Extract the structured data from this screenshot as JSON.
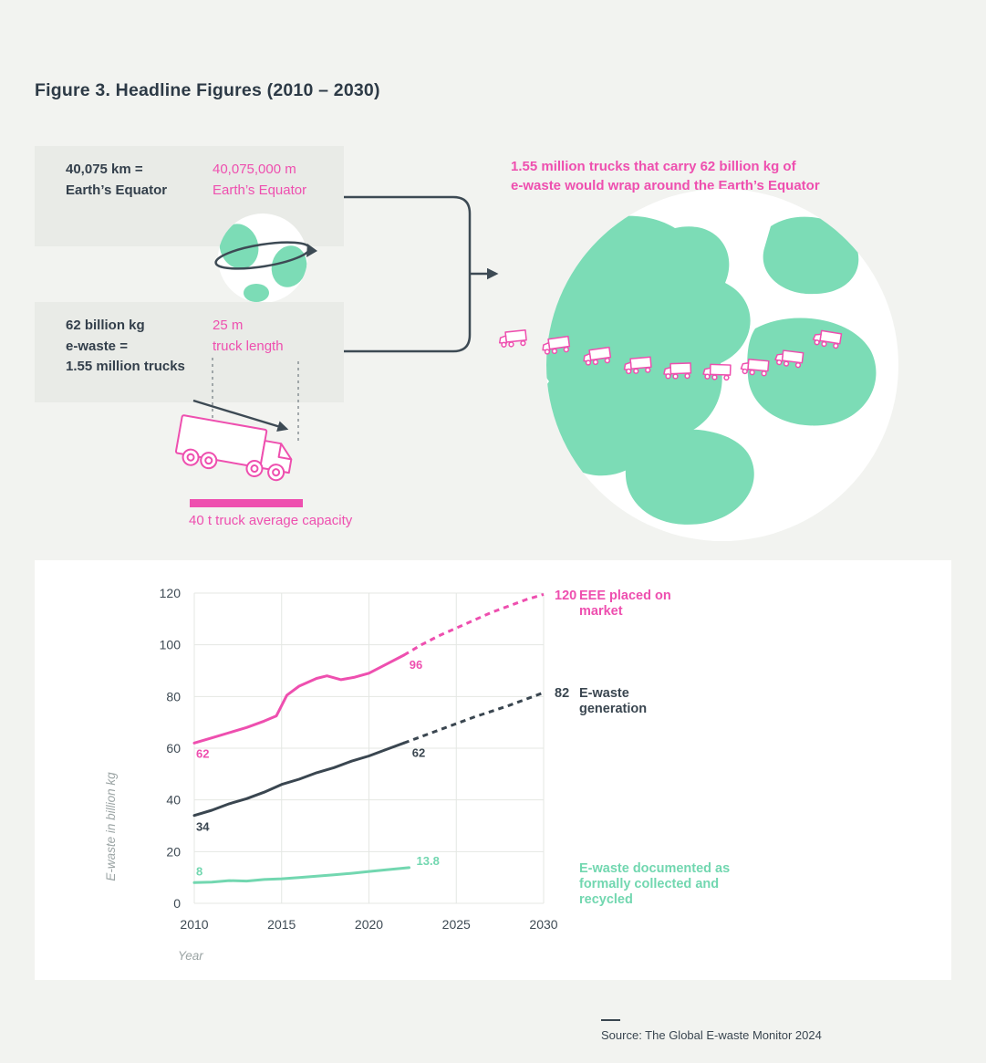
{
  "figure": {
    "title": "Figure 3. Headline Figures (2010 – 2030)",
    "source": "Source: The Global E-waste Monitor 2024"
  },
  "cards": {
    "equator": {
      "fact": [
        "40,075 km =",
        "Earth’s Equator"
      ],
      "conversion": [
        "40,075,000 m",
        "Earth’s Equator"
      ]
    },
    "trucks": {
      "fact": [
        "62 billion kg",
        "e-waste =",
        "1.55 million trucks"
      ],
      "conversion": [
        "25 m",
        "truck length"
      ],
      "caption": "40 t truck average capacity"
    }
  },
  "headline": [
    "1.55 million trucks that carry 62 billion kg of",
    "e-waste would wrap around the Earth’s Equator"
  ],
  "colors": {
    "pink": "#ee4faf",
    "dark": "#3a4650",
    "green": "#72d7b0",
    "continent_green": "#7cdcb6",
    "card_bg": "#e9ebe7",
    "page_bg": "#f2f3f0",
    "grid": "#e4e7e3"
  },
  "chart_data": {
    "type": "line",
    "title": "",
    "xlabel": "Year",
    "ylabel": "E-waste in billion kg",
    "xlim": [
      2010,
      2030
    ],
    "ylim": [
      0,
      120
    ],
    "xticks": [
      2010,
      2015,
      2020,
      2025,
      2030
    ],
    "yticks": [
      0,
      20,
      40,
      60,
      80,
      100,
      120
    ],
    "grid": true,
    "legend_position": "right",
    "series": [
      {
        "name": "EEE placed on market",
        "color": "#ee4faf",
        "solid_x": [
          2010,
          2011,
          2012,
          2013,
          2014,
          2014.7,
          2015.3,
          2016,
          2017,
          2017.6,
          2018.4,
          2019.2,
          2020,
          2021,
          2022
        ],
        "solid_y": [
          62,
          64,
          66,
          68,
          70.5,
          72.5,
          80.5,
          84,
          87,
          88,
          86.5,
          87.5,
          89,
          92.5,
          96
        ],
        "dashed_x": [
          2022,
          2023,
          2024,
          2025,
          2026,
          2027,
          2028,
          2029,
          2030
        ],
        "dashed_y": [
          96,
          100,
          103.5,
          106.5,
          109.5,
          112.5,
          115,
          117.5,
          119.5
        ],
        "point_labels": [
          {
            "x": 2010,
            "y": 62,
            "text": "62",
            "dx": 2,
            "dy": 16
          },
          {
            "x": 2022,
            "y": 96,
            "text": "96",
            "dx": 6,
            "dy": 15
          }
        ]
      },
      {
        "name": "E-waste generation",
        "color": "#3a4650",
        "solid_x": [
          2010,
          2011,
          2012,
          2013,
          2014,
          2015,
          2016,
          2017,
          2018,
          2019,
          2020,
          2021,
          2022
        ],
        "solid_y": [
          34,
          36,
          38.5,
          40.5,
          43,
          46,
          48,
          50.5,
          52.5,
          55,
          57,
          59.5,
          62
        ],
        "dashed_x": [
          2022,
          2024,
          2026,
          2028,
          2030
        ],
        "dashed_y": [
          62,
          67,
          72,
          76.5,
          81.5
        ],
        "point_labels": [
          {
            "x": 2010,
            "y": 34,
            "text": "34",
            "dx": 2,
            "dy": 17
          },
          {
            "x": 2022,
            "y": 62,
            "text": "62",
            "dx": 9,
            "dy": 15
          }
        ]
      },
      {
        "name": "E-waste documented as formally collected and recycled",
        "color": "#72d7b0",
        "solid_x": [
          2010,
          2011,
          2012,
          2013,
          2014,
          2015,
          2016,
          2017,
          2018,
          2019,
          2020,
          2021,
          2022.3
        ],
        "solid_y": [
          8,
          8.2,
          8.8,
          8.6,
          9.2,
          9.5,
          10,
          10.5,
          11,
          11.6,
          12.3,
          13,
          13.8
        ],
        "point_labels": [
          {
            "x": 2010,
            "y": 8,
            "text": "8",
            "dx": 2,
            "dy": -8
          },
          {
            "x": 2022.3,
            "y": 13.8,
            "text": "13.8",
            "dx": 8,
            "dy": -3
          }
        ]
      }
    ],
    "legend": [
      {
        "value": "120",
        "label": "EEE placed on market",
        "color_key": "pink"
      },
      {
        "value": "82",
        "label": "E-waste generation",
        "color_key": "dark"
      },
      {
        "value": "",
        "label": "E-waste documented as formally collected and recycled",
        "color_key": "green"
      }
    ]
  }
}
